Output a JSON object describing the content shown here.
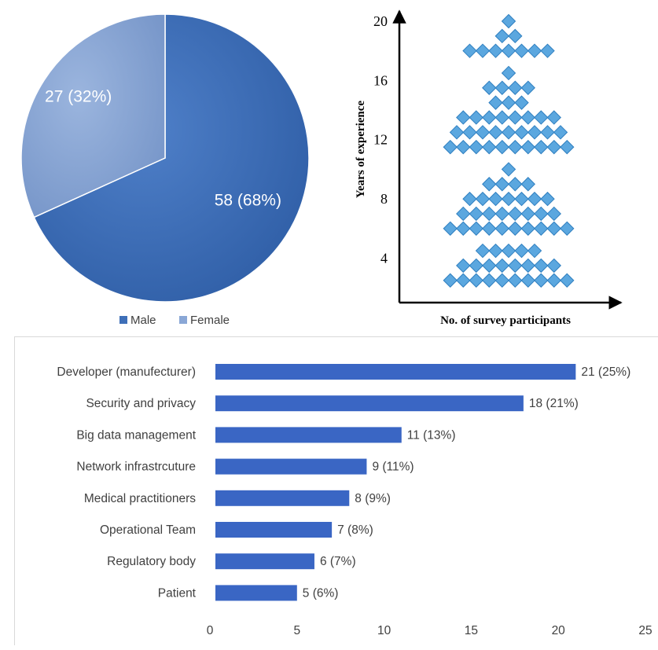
{
  "chart_data": [
    {
      "type": "pie",
      "slices": [
        {
          "name": "Male",
          "value": 58,
          "label": "58 (68%)",
          "color": "#3e6fb8"
        },
        {
          "name": "Female",
          "value": 27,
          "label": "27 (32%)",
          "color": "#8aa7d6"
        }
      ],
      "legend": [
        "Male",
        "Female"
      ],
      "legend_position": "bottom"
    },
    {
      "type": "scatter",
      "xlabel": "No. of survey participants",
      "ylabel": "Years of experience",
      "yticks": [
        "4",
        "8",
        "12",
        "16",
        "20"
      ],
      "ylim": [
        1,
        21
      ],
      "marker": "diamond",
      "color": "#5ba7df",
      "rows": [
        {
          "y": 20,
          "count": 1
        },
        {
          "y": 19,
          "count": 2
        },
        {
          "y": 18,
          "count": 7
        },
        {
          "y": 16.5,
          "count": 1
        },
        {
          "y": 15.5,
          "count": 4
        },
        {
          "y": 14.5,
          "count": 3
        },
        {
          "y": 13.5,
          "count": 8
        },
        {
          "y": 12.5,
          "count": 9
        },
        {
          "y": 11.5,
          "count": 10
        },
        {
          "y": 10,
          "count": 1
        },
        {
          "y": 9,
          "count": 4
        },
        {
          "y": 8,
          "count": 7
        },
        {
          "y": 7,
          "count": 8
        },
        {
          "y": 6,
          "count": 10
        },
        {
          "y": 4.5,
          "count": 5
        },
        {
          "y": 3.5,
          "count": 8
        },
        {
          "y": 2.5,
          "count": 10
        }
      ]
    },
    {
      "type": "bar",
      "orientation": "horizontal",
      "categories": [
        "Developer (manufecturer)",
        "Security and privacy",
        "Big data management",
        "Network infrastrcuture",
        "Medical practitioners",
        "Operational Team",
        "Regulatory body",
        "Patient"
      ],
      "values": [
        21,
        18,
        11,
        9,
        8,
        7,
        6,
        5
      ],
      "labels": [
        "21 (25%)",
        "18 (21%)",
        "11 (13%)",
        "9 (11%)",
        "8 (9%)",
        "7 (8%)",
        "6 (7%)",
        "5 (6%)"
      ],
      "xticks": [
        "0",
        "5",
        "10",
        "15",
        "20",
        "25"
      ],
      "xlim": [
        0,
        25
      ],
      "color": "#3a66c4"
    }
  ]
}
